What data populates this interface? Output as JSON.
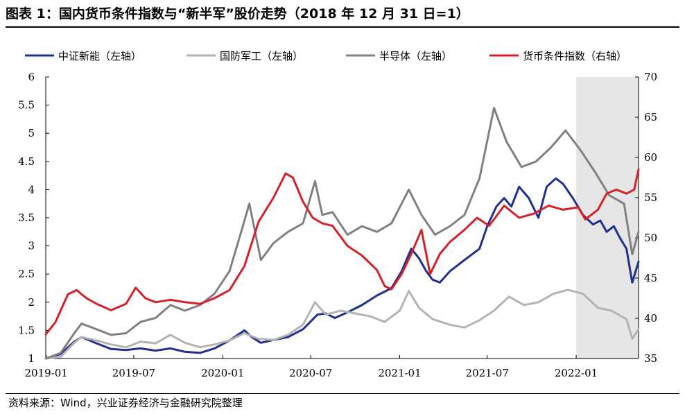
{
  "title": "图表 1：国内货币条件指数与“新半军”股价走势（2018 年 12 月 31 日=1）",
  "source": "资料来源：Wind，兴业证券经济与金融研究院整理",
  "chart_data": {
    "type": "line",
    "x_ticks": [
      "2019-01",
      "2019-07",
      "2020-01",
      "2020-07",
      "2021-01",
      "2021-07",
      "2022-01"
    ],
    "x_range": [
      "2018-12-31",
      "2022-05-10"
    ],
    "y_left": {
      "range": [
        1,
        6
      ],
      "ticks": [
        "1",
        "1.5",
        "2",
        "2.5",
        "3",
        "3.5",
        "4",
        "4.5",
        "5",
        "5.5",
        "6"
      ]
    },
    "y_right": {
      "range": [
        35,
        70
      ],
      "ticks": [
        "35",
        "40",
        "45",
        "50",
        "55",
        "60",
        "65",
        "70"
      ]
    },
    "grid": false,
    "legend_position": "top",
    "shaded_region": {
      "from": "2022-01",
      "to": "2022-05-10",
      "color": "#e6e6e6"
    },
    "series": [
      {
        "name": "中证新能（左轴）",
        "axis": "left",
        "color": "#1f2f8f",
        "points": [
          [
            "2018-12-31",
            1.0
          ],
          [
            "2019-01-31",
            1.08
          ],
          [
            "2019-02-28",
            1.3
          ],
          [
            "2019-03-15",
            1.38
          ],
          [
            "2019-04-15",
            1.27
          ],
          [
            "2019-05-15",
            1.17
          ],
          [
            "2019-06-15",
            1.15
          ],
          [
            "2019-07-15",
            1.18
          ],
          [
            "2019-08-15",
            1.14
          ],
          [
            "2019-09-15",
            1.18
          ],
          [
            "2019-10-15",
            1.12
          ],
          [
            "2019-11-15",
            1.1
          ],
          [
            "2019-12-15",
            1.18
          ],
          [
            "2020-01-15",
            1.32
          ],
          [
            "2020-02-15",
            1.5
          ],
          [
            "2020-03-01",
            1.38
          ],
          [
            "2020-03-20",
            1.28
          ],
          [
            "2020-04-15",
            1.33
          ],
          [
            "2020-05-15",
            1.38
          ],
          [
            "2020-06-15",
            1.52
          ],
          [
            "2020-07-15",
            1.78
          ],
          [
            "2020-08-01",
            1.8
          ],
          [
            "2020-08-20",
            1.72
          ],
          [
            "2020-09-15",
            1.82
          ],
          [
            "2020-10-15",
            1.95
          ],
          [
            "2020-11-15",
            2.12
          ],
          [
            "2020-12-15",
            2.25
          ],
          [
            "2021-01-05",
            2.55
          ],
          [
            "2021-01-25",
            2.95
          ],
          [
            "2021-02-10",
            2.78
          ],
          [
            "2021-02-25",
            2.55
          ],
          [
            "2021-03-10",
            2.4
          ],
          [
            "2021-03-25",
            2.35
          ],
          [
            "2021-04-15",
            2.55
          ],
          [
            "2021-05-15",
            2.75
          ],
          [
            "2021-06-15",
            2.95
          ],
          [
            "2021-07-01",
            3.35
          ],
          [
            "2021-07-20",
            3.7
          ],
          [
            "2021-08-05",
            3.85
          ],
          [
            "2021-08-20",
            3.7
          ],
          [
            "2021-09-05",
            4.05
          ],
          [
            "2021-09-25",
            3.85
          ],
          [
            "2021-10-15",
            3.5
          ],
          [
            "2021-11-01",
            4.05
          ],
          [
            "2021-11-20",
            4.2
          ],
          [
            "2021-12-05",
            4.1
          ],
          [
            "2021-12-25",
            3.85
          ],
          [
            "2022-01-15",
            3.55
          ],
          [
            "2022-02-05",
            3.38
          ],
          [
            "2022-02-20",
            3.45
          ],
          [
            "2022-03-05",
            3.25
          ],
          [
            "2022-03-20",
            3.35
          ],
          [
            "2022-04-01",
            3.15
          ],
          [
            "2022-04-15",
            2.95
          ],
          [
            "2022-04-27",
            2.35
          ],
          [
            "2022-05-10",
            2.72
          ]
        ]
      },
      {
        "name": "国防军工（左轴）",
        "axis": "left",
        "color": "#b3b3b3",
        "points": [
          [
            "2018-12-31",
            1.0
          ],
          [
            "2019-01-31",
            1.03
          ],
          [
            "2019-02-28",
            1.28
          ],
          [
            "2019-03-15",
            1.38
          ],
          [
            "2019-04-15",
            1.32
          ],
          [
            "2019-05-15",
            1.25
          ],
          [
            "2019-06-15",
            1.2
          ],
          [
            "2019-07-15",
            1.3
          ],
          [
            "2019-08-15",
            1.27
          ],
          [
            "2019-09-15",
            1.42
          ],
          [
            "2019-10-15",
            1.28
          ],
          [
            "2019-11-15",
            1.2
          ],
          [
            "2019-12-15",
            1.25
          ],
          [
            "2020-01-15",
            1.32
          ],
          [
            "2020-02-15",
            1.45
          ],
          [
            "2020-03-15",
            1.35
          ],
          [
            "2020-04-15",
            1.33
          ],
          [
            "2020-05-15",
            1.42
          ],
          [
            "2020-06-15",
            1.6
          ],
          [
            "2020-07-10",
            2.0
          ],
          [
            "2020-08-01",
            1.78
          ],
          [
            "2020-09-01",
            1.85
          ],
          [
            "2020-10-01",
            1.8
          ],
          [
            "2020-11-01",
            1.75
          ],
          [
            "2020-12-01",
            1.65
          ],
          [
            "2021-01-01",
            1.85
          ],
          [
            "2021-01-20",
            2.2
          ],
          [
            "2021-02-10",
            1.9
          ],
          [
            "2021-03-10",
            1.7
          ],
          [
            "2021-04-15",
            1.6
          ],
          [
            "2021-05-15",
            1.55
          ],
          [
            "2021-06-15",
            1.68
          ],
          [
            "2021-07-15",
            1.85
          ],
          [
            "2021-08-15",
            2.1
          ],
          [
            "2021-09-15",
            1.95
          ],
          [
            "2021-10-15",
            2.0
          ],
          [
            "2021-11-15",
            2.15
          ],
          [
            "2021-12-15",
            2.22
          ],
          [
            "2022-01-15",
            2.15
          ],
          [
            "2022-02-15",
            1.9
          ],
          [
            "2022-03-15",
            1.85
          ],
          [
            "2022-04-15",
            1.7
          ],
          [
            "2022-04-27",
            1.35
          ],
          [
            "2022-05-10",
            1.52
          ]
        ]
      },
      {
        "name": "半导体（左轴）",
        "axis": "left",
        "color": "#808080",
        "points": [
          [
            "2018-12-31",
            1.0
          ],
          [
            "2019-01-31",
            1.1
          ],
          [
            "2019-02-28",
            1.45
          ],
          [
            "2019-03-15",
            1.62
          ],
          [
            "2019-04-15",
            1.52
          ],
          [
            "2019-05-15",
            1.42
          ],
          [
            "2019-06-15",
            1.45
          ],
          [
            "2019-07-15",
            1.65
          ],
          [
            "2019-08-15",
            1.72
          ],
          [
            "2019-09-15",
            1.95
          ],
          [
            "2019-10-15",
            1.85
          ],
          [
            "2019-11-15",
            1.95
          ],
          [
            "2019-12-15",
            2.15
          ],
          [
            "2020-01-15",
            2.55
          ],
          [
            "2020-02-10",
            3.3
          ],
          [
            "2020-02-25",
            3.75
          ],
          [
            "2020-03-20",
            2.75
          ],
          [
            "2020-04-15",
            3.05
          ],
          [
            "2020-05-15",
            3.25
          ],
          [
            "2020-06-15",
            3.4
          ],
          [
            "2020-07-10",
            4.15
          ],
          [
            "2020-07-25",
            3.55
          ],
          [
            "2020-08-15",
            3.6
          ],
          [
            "2020-09-15",
            3.2
          ],
          [
            "2020-10-15",
            3.35
          ],
          [
            "2020-11-15",
            3.25
          ],
          [
            "2020-12-15",
            3.4
          ],
          [
            "2021-01-20",
            4.0
          ],
          [
            "2021-02-15",
            3.55
          ],
          [
            "2021-03-15",
            3.2
          ],
          [
            "2021-04-15",
            3.35
          ],
          [
            "2021-05-15",
            3.55
          ],
          [
            "2021-06-15",
            4.2
          ],
          [
            "2021-07-15",
            5.45
          ],
          [
            "2021-08-10",
            4.85
          ],
          [
            "2021-09-10",
            4.4
          ],
          [
            "2021-10-10",
            4.5
          ],
          [
            "2021-11-10",
            4.75
          ],
          [
            "2021-12-10",
            5.05
          ],
          [
            "2022-01-10",
            4.7
          ],
          [
            "2022-02-10",
            4.3
          ],
          [
            "2022-03-10",
            3.9
          ],
          [
            "2022-04-10",
            3.75
          ],
          [
            "2022-04-27",
            2.85
          ],
          [
            "2022-05-10",
            3.25
          ]
        ]
      },
      {
        "name": "货币条件指数（右轴）",
        "axis": "right",
        "color": "#d42027",
        "points": [
          [
            "2018-12-31",
            38.0
          ],
          [
            "2019-01-20",
            39.5
          ],
          [
            "2019-02-15",
            43.0
          ],
          [
            "2019-03-05",
            43.5
          ],
          [
            "2019-03-25",
            42.5
          ],
          [
            "2019-04-15",
            41.8
          ],
          [
            "2019-05-15",
            41.0
          ],
          [
            "2019-06-15",
            41.8
          ],
          [
            "2019-07-05",
            43.8
          ],
          [
            "2019-07-25",
            42.5
          ],
          [
            "2019-08-15",
            42.0
          ],
          [
            "2019-09-15",
            42.3
          ],
          [
            "2019-10-15",
            42.0
          ],
          [
            "2019-11-15",
            41.8
          ],
          [
            "2019-12-15",
            42.5
          ],
          [
            "2020-01-15",
            43.5
          ],
          [
            "2020-02-15",
            46.5
          ],
          [
            "2020-03-15",
            52.0
          ],
          [
            "2020-04-15",
            55.0
          ],
          [
            "2020-05-10",
            58.0
          ],
          [
            "2020-05-25",
            57.5
          ],
          [
            "2020-06-15",
            54.5
          ],
          [
            "2020-07-05",
            52.5
          ],
          [
            "2020-07-25",
            51.8
          ],
          [
            "2020-08-15",
            51.5
          ],
          [
            "2020-09-15",
            49.0
          ],
          [
            "2020-10-15",
            47.8
          ],
          [
            "2020-11-15",
            46.0
          ],
          [
            "2020-12-01",
            44.0
          ],
          [
            "2020-12-15",
            43.6
          ],
          [
            "2021-01-05",
            45.5
          ],
          [
            "2021-01-25",
            48.0
          ],
          [
            "2021-02-15",
            51.0
          ],
          [
            "2021-03-05",
            45.5
          ],
          [
            "2021-03-25",
            48.0
          ],
          [
            "2021-04-15",
            49.5
          ],
          [
            "2021-05-15",
            51.0
          ],
          [
            "2021-06-10",
            52.5
          ],
          [
            "2021-07-05",
            51.5
          ],
          [
            "2021-08-05",
            54.0
          ],
          [
            "2021-09-05",
            52.5
          ],
          [
            "2021-10-05",
            53.0
          ],
          [
            "2021-11-05",
            54.0
          ],
          [
            "2021-12-05",
            53.5
          ],
          [
            "2022-01-05",
            53.8
          ],
          [
            "2022-01-20",
            52.3
          ],
          [
            "2022-02-15",
            53.5
          ],
          [
            "2022-03-05",
            55.5
          ],
          [
            "2022-03-25",
            56.0
          ],
          [
            "2022-04-15",
            55.5
          ],
          [
            "2022-05-01",
            56.0
          ],
          [
            "2022-05-10",
            58.5
          ]
        ]
      }
    ]
  }
}
